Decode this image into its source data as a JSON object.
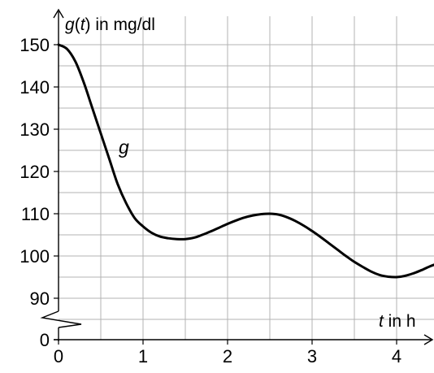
{
  "chart_data": {
    "type": "line",
    "xlabel": {
      "var": "t",
      "unit": " in h"
    },
    "ylabel": {
      "fn": "g",
      "var": "t",
      "unit": " in mg/dl"
    },
    "x_ticks": [
      "0",
      "1",
      "2",
      "3",
      "4"
    ],
    "y_ticks": [
      "0",
      "90",
      "100",
      "110",
      "120",
      "130",
      "140",
      "150"
    ],
    "xlim": [
      0,
      4.5
    ],
    "ylim_broken": {
      "below": 0,
      "main": [
        90,
        150
      ]
    },
    "grid": true,
    "series": [
      {
        "name": "g",
        "x": [
          0,
          0.1,
          0.2,
          0.3,
          0.4,
          0.5,
          0.6,
          0.7,
          0.8,
          0.9,
          1.0,
          1.1,
          1.2,
          1.3,
          1.4,
          1.5,
          1.6,
          1.7,
          1.8,
          1.9,
          2.0,
          2.1,
          2.2,
          2.3,
          2.4,
          2.5,
          2.6,
          2.7,
          2.8,
          2.9,
          3.0,
          3.1,
          3.2,
          3.3,
          3.4,
          3.5,
          3.6,
          3.7,
          3.8,
          3.9,
          4.0,
          4.1,
          4.2,
          4.3,
          4.4,
          4.5
        ],
        "y": [
          150,
          149,
          146,
          141,
          135,
          129,
          123,
          117,
          112.5,
          109,
          107,
          105.5,
          104.6,
          104.2,
          104,
          104,
          104.3,
          105,
          105.8,
          106.7,
          107.6,
          108.4,
          109.1,
          109.6,
          109.9,
          110,
          109.8,
          109.2,
          108.3,
          107.2,
          105.9,
          104.5,
          103,
          101.5,
          100,
          98.6,
          97.4,
          96.3,
          95.5,
          95.1,
          95,
          95.3,
          95.9,
          96.7,
          97.6,
          98.3
        ]
      }
    ]
  }
}
